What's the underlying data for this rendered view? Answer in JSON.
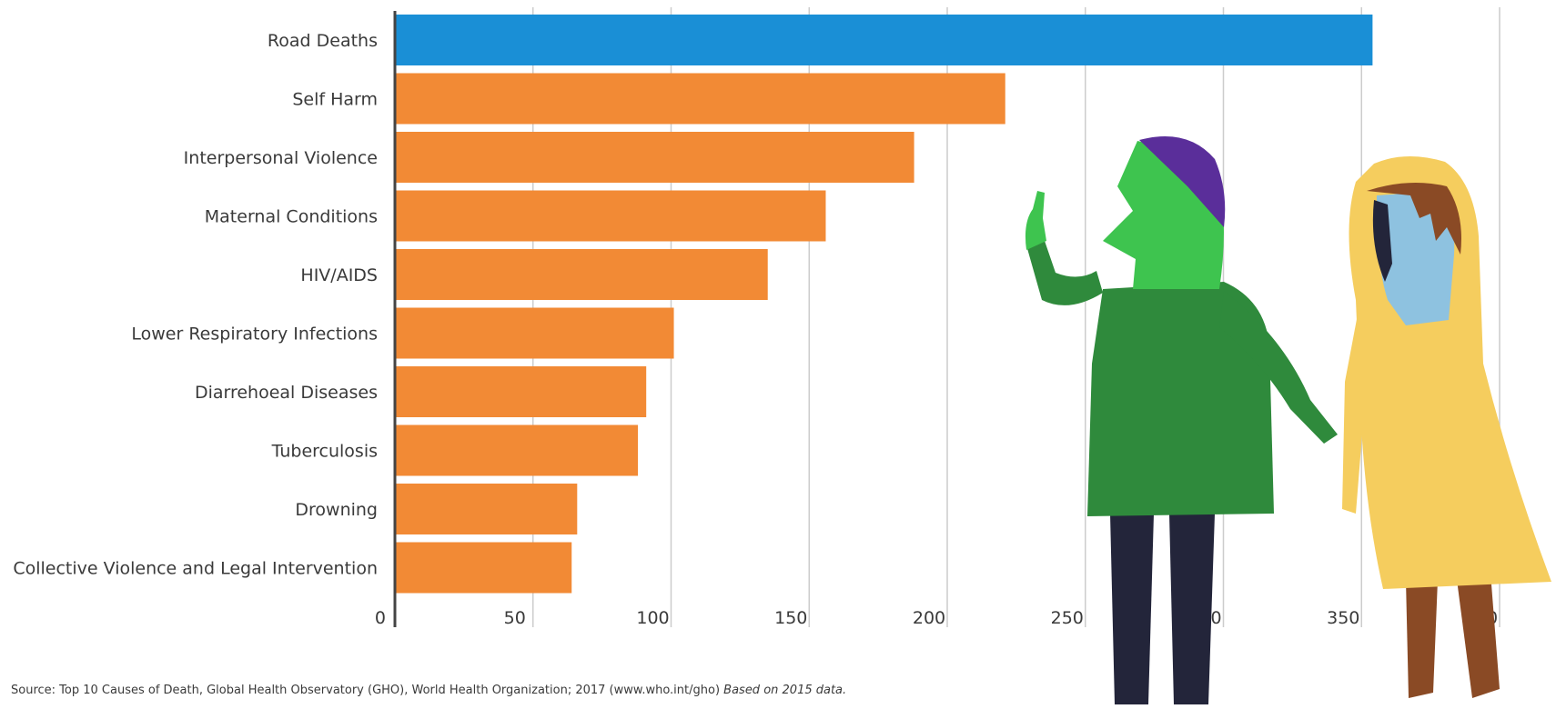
{
  "chart_data": {
    "type": "bar",
    "orientation": "horizontal",
    "categories": [
      "Road Deaths",
      "Self Harm",
      "Interpersonal Violence",
      "Maternal Conditions",
      "HIV/AIDS",
      "Lower Respiratory Infections",
      "Diarrehoeal Diseases",
      "Tuberculosis",
      "Drowning",
      "Collective Violence and Legal Intervention"
    ],
    "values": [
      354,
      221,
      188,
      156,
      135,
      101,
      91,
      88,
      66,
      64
    ],
    "bar_colors": [
      "#1a8fd6",
      "#f28a35",
      "#f28a35",
      "#f28a35",
      "#f28a35",
      "#f28a35",
      "#f28a35",
      "#f28a35",
      "#f28a35",
      "#f28a35"
    ],
    "xticks": [
      "0",
      "50",
      "100",
      "150",
      "200",
      "250",
      "300",
      "350",
      "400"
    ],
    "xlim": [
      0,
      400
    ],
    "grid": true,
    "gridline_color": "#cccccc",
    "title": "",
    "xlabel": "",
    "ylabel": ""
  },
  "source": {
    "text": "Source: Top 10 Causes of Death, Global Health Observatory (GHO), World Health Organization; 2017 (www.who.int/gho) ",
    "italic": "Based on 2015 data."
  },
  "illustration": {
    "figures": [
      "green-person-figure",
      "yellow-raincoat-figure"
    ],
    "colors": {
      "green_head": "#3ec44f",
      "purple_hat": "#5a2e9a",
      "green_coat": "#2f8a3c",
      "dark_pants": "#23253a",
      "yellow_coat": "#f5cd5e",
      "blue_face": "#8ec2e0",
      "brown_skin": "#8a4a25"
    }
  }
}
